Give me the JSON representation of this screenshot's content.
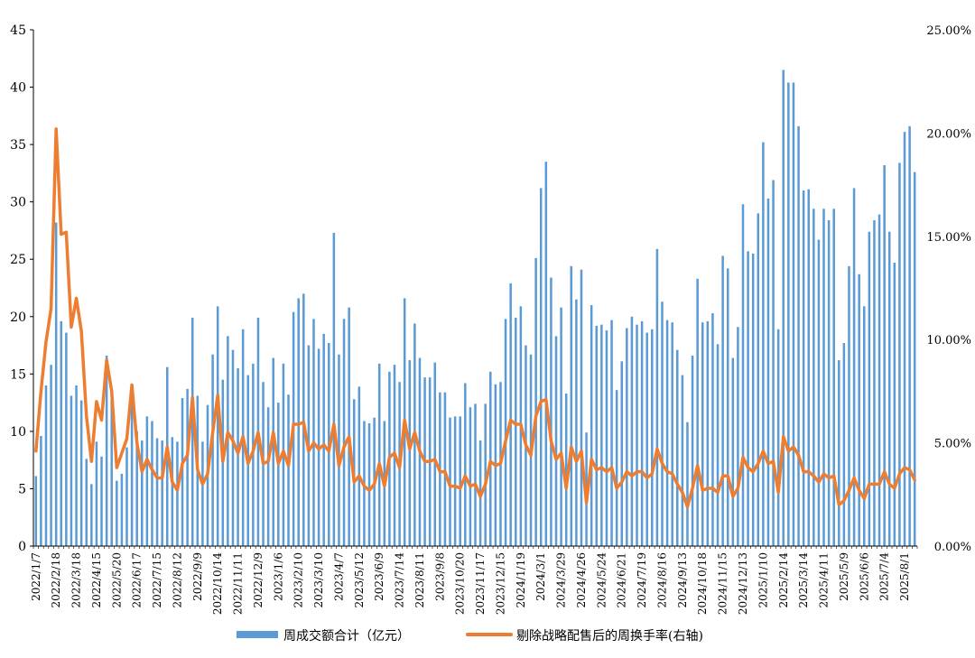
{
  "chart_data": {
    "type": "bar+line",
    "title": "",
    "y_left": {
      "min": 0,
      "max": 45,
      "ticks": [
        0,
        5,
        10,
        15,
        20,
        25,
        30,
        35,
        40,
        45
      ],
      "tick_labels": [
        "0",
        "5",
        "10",
        "15",
        "20",
        "25",
        "30",
        "35",
        "40",
        "45"
      ]
    },
    "y_right": {
      "min": 0,
      "max": 25,
      "ticks": [
        0,
        5,
        10,
        15,
        20,
        25
      ],
      "tick_labels": [
        "0.00%",
        "5.00%",
        "10.00%",
        "15.00%",
        "20.00%",
        "25.00%"
      ]
    },
    "x_tick_labels": [
      "2022/1/7",
      "2022/2/18",
      "2022/3/18",
      "2022/4/15",
      "2022/5/20",
      "2022/6/17",
      "2022/7/15",
      "2022/8/12",
      "2022/9/9",
      "2022/10/14",
      "2022/11/11",
      "2022/12/9",
      "2023/1/6",
      "2023/2/10",
      "2023/3/10",
      "2023/4/7",
      "2023/5/12",
      "2023/6/9",
      "2023/7/14",
      "2023/8/11",
      "2023/9/8",
      "2023/10/20",
      "2023/11/17",
      "2023/12/15",
      "2024/1/19",
      "2024/3/1",
      "2024/3/29",
      "2024/4/26",
      "2024/5/24",
      "2024/6/21",
      "2024/7/19",
      "2024/8/16",
      "2024/9/13",
      "2024/10/18",
      "2024/11/15",
      "2024/12/13",
      "2025/1/10",
      "2025/2/14",
      "2025/3/14",
      "2025/4/11",
      "2025/5/9",
      "2025/6/6",
      "2025/7/4",
      "2025/8/1"
    ],
    "x_tick_every": 4,
    "series": [
      {
        "name": "周成交额合计（亿元）",
        "type": "bar",
        "axis": "left",
        "color": "#5b9bd5",
        "values": [
          6.1,
          9.6,
          14,
          15.8,
          28.2,
          19.6,
          18.6,
          13.1,
          14,
          12.7,
          7.6,
          5.4,
          9.1,
          7.8,
          16.6,
          13.5,
          5.7,
          6.3,
          8.6,
          13.9,
          10,
          9.2,
          11.3,
          10.9,
          9.4,
          9.2,
          15.6,
          9.5,
          9.1,
          12.9,
          13.7,
          19.9,
          13.1,
          9.1,
          12.3,
          16.7,
          20.9,
          14.5,
          18.3,
          17.1,
          15.5,
          18.9,
          14.9,
          15.9,
          19.9,
          14.3,
          12.1,
          16.4,
          12.5,
          15.9,
          13.2,
          20.4,
          21.6,
          22,
          17.5,
          19.8,
          17.2,
          18.5,
          17.7,
          27.3,
          16.7,
          19.8,
          20.8,
          12.8,
          13.9,
          10.9,
          10.7,
          11.2,
          15.9,
          10.9,
          15.2,
          15.8,
          14.3,
          21.6,
          16.2,
          19.4,
          16.4,
          14.7,
          14.7,
          16,
          13.4,
          13.4,
          11.2,
          11.3,
          11.3,
          14.2,
          12.1,
          12.4,
          9.2,
          12.4,
          15.2,
          14.1,
          14.3,
          19.8,
          22.9,
          19.9,
          20.9,
          17.5,
          16.7,
          25.1,
          31.2,
          33.5,
          23.4,
          18.3,
          20.8,
          13.3,
          24.4,
          21.5,
          24.1,
          9.9,
          21,
          19.2,
          19.3,
          18.8,
          19.7,
          13.6,
          16.1,
          19,
          20,
          19.3,
          19.6,
          18.6,
          18.9,
          25.9,
          21.3,
          19.7,
          19.5,
          17.1,
          14.9,
          10.8,
          16.6,
          23.3,
          19.5,
          19.6,
          20.3,
          17.6,
          25.3,
          24.2,
          16.4,
          19.1,
          29.8,
          25.7,
          25.5,
          29,
          35.2,
          30.3,
          31.9,
          18.9,
          41.5,
          40.4,
          40.4,
          36.6,
          31,
          31.1,
          29.4,
          26.7,
          29.4,
          28.4,
          29.4,
          16.2,
          17.7,
          24.4,
          31.2,
          23.7,
          20.9,
          27.4,
          28.4,
          28.9,
          33.2,
          27.4,
          24.7,
          33.4,
          36.1,
          36.6,
          32.6
        ]
      },
      {
        "name": "剔除战略配售后的周换手率(右轴)",
        "type": "line",
        "axis": "right",
        "color": "#ed7d31",
        "values": [
          4.6,
          7.5,
          9.9,
          11.5,
          20.2,
          15.1,
          15.2,
          10.6,
          12,
          10.4,
          6.3,
          4.1,
          7,
          6.1,
          9,
          7.5,
          3.8,
          4.5,
          5.2,
          7.8,
          5,
          3.6,
          4.2,
          3.7,
          3.3,
          3.3,
          4.8,
          3.1,
          2.7,
          4,
          4.4,
          7.2,
          3.7,
          3,
          3.5,
          5.5,
          7.3,
          4.1,
          5.5,
          5.1,
          4.5,
          5.3,
          4,
          4.6,
          5.5,
          4,
          4.1,
          5.5,
          4,
          4.6,
          3.9,
          5.9,
          5.9,
          6,
          4.6,
          5,
          4.7,
          4.9,
          4.6,
          5.9,
          3.9,
          4.8,
          5.3,
          3.1,
          3.4,
          2.9,
          2.7,
          3,
          4,
          2.9,
          4.3,
          4.5,
          3.8,
          6.1,
          4.7,
          5.5,
          4.6,
          4.1,
          4.1,
          4.2,
          3.6,
          3.6,
          2.9,
          2.9,
          2.8,
          3.4,
          2.9,
          3,
          2.4,
          3,
          4.1,
          3.9,
          4,
          5.1,
          6.1,
          5.9,
          5.9,
          4.9,
          4.4,
          6.3,
          7,
          7.1,
          5.1,
          4.2,
          4.5,
          2.8,
          4.8,
          4.1,
          4.6,
          2.1,
          4.2,
          3.7,
          3.8,
          3.6,
          3.8,
          2.8,
          3.1,
          3.6,
          3.4,
          3.6,
          3.6,
          3.3,
          3.5,
          4.7,
          4,
          3.6,
          3.5,
          3,
          2.6,
          1.9,
          2.8,
          3.9,
          2.7,
          2.8,
          2.8,
          2.6,
          3.4,
          3.4,
          2.4,
          2.8,
          4.3,
          3.8,
          3.6,
          4,
          4.6,
          4,
          4.1,
          2.6,
          5.3,
          4.6,
          4.8,
          4.4,
          3.6,
          3.6,
          3.4,
          3.1,
          3.5,
          3.3,
          3.4,
          2,
          2.2,
          2.7,
          3.3,
          2.7,
          2.3,
          3,
          3,
          3,
          3.6,
          3,
          2.8,
          3.5,
          3.8,
          3.7,
          3.2
        ]
      }
    ],
    "legend": {
      "position": "bottom",
      "items": [
        "周成交额合计（亿元）",
        "剔除战略配售后的周换手率(右轴)"
      ]
    },
    "grid": false
  }
}
